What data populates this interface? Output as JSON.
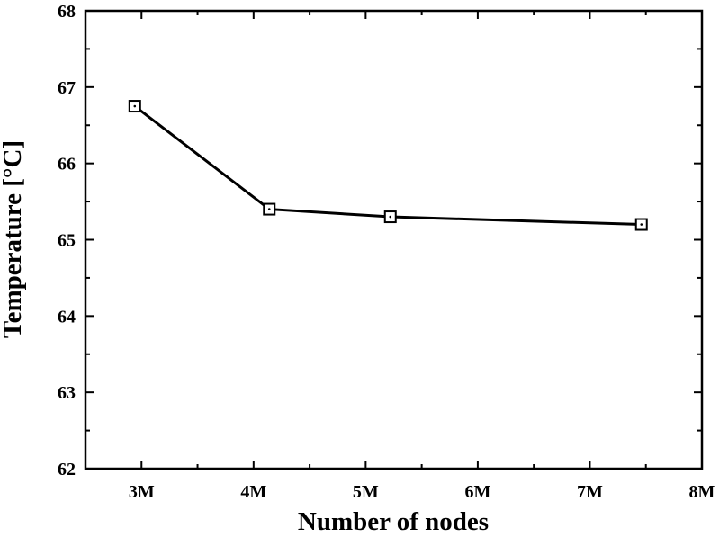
{
  "chart_data": {
    "type": "line",
    "title": "",
    "xlabel": "Number of nodes",
    "ylabel": "Temperature [°C]",
    "xlim": [
      2.5,
      8
    ],
    "ylim": [
      62,
      68
    ],
    "x_unit_suffix": "M",
    "xticks": [
      3,
      4,
      5,
      6,
      7,
      8
    ],
    "xtick_labels": [
      "3M",
      "4M",
      "5M",
      "6M",
      "7M",
      "8M"
    ],
    "yticks": [
      62,
      63,
      64,
      65,
      66,
      67,
      68
    ],
    "ytick_labels": [
      "62",
      "63",
      "64",
      "65",
      "66",
      "67",
      "68"
    ],
    "grid": false,
    "marker": "open-square-with-dot",
    "line_color": "#000000",
    "series": [
      {
        "x": [
          2.94,
          4.14,
          5.22,
          7.46
        ],
        "y": [
          66.75,
          65.4,
          65.3,
          65.2
        ]
      }
    ]
  }
}
